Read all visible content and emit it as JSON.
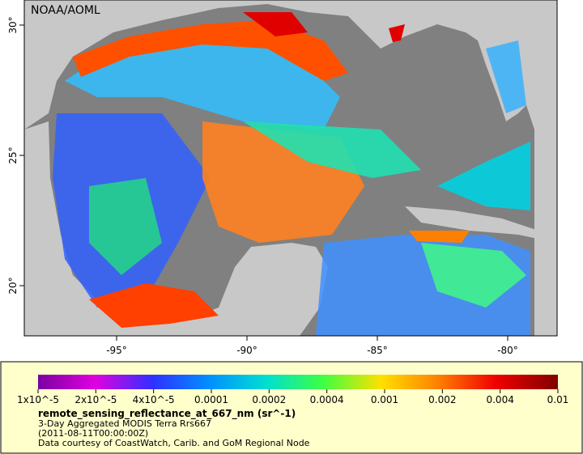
{
  "map": {
    "credit": "NOAA/AOML",
    "x_ticks": [
      "-95°",
      "-90°",
      "-85°",
      "-80°"
    ],
    "y_ticks": [
      "30°",
      "25°",
      "20°"
    ]
  },
  "legend": {
    "ticks": [
      "1x10^-5",
      "2x10^-5",
      "4x10^-5",
      "0.0001",
      "0.0002",
      "0.0004",
      "0.001",
      "0.002",
      "0.004",
      "0.01"
    ],
    "variable": "remote_sensing_reflectance_at_667_nm (sr^-1)",
    "lines": [
      "3-Day Aggregated MODIS Terra Rrs667",
      "(2011-08-11T00:00:00Z)",
      "Data courtesy of CoastWatch, Carib. and GoM Regional Node"
    ]
  }
}
